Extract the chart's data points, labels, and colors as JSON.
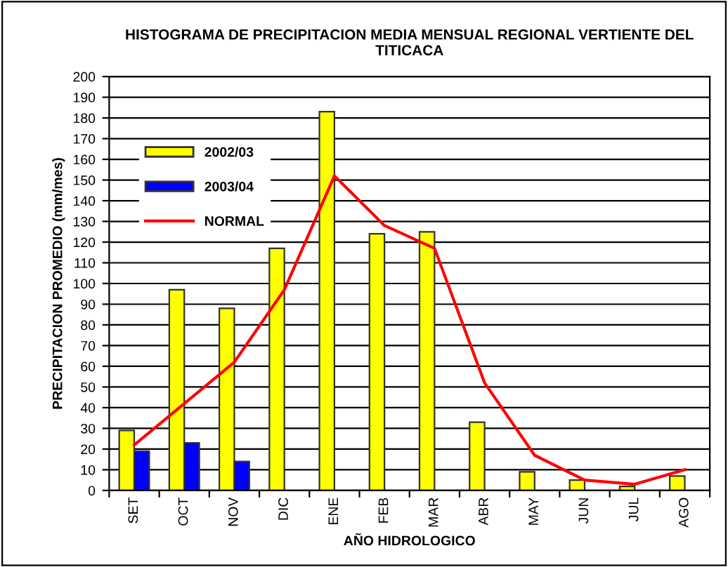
{
  "chart_data": {
    "type": "bar",
    "title": "HISTOGRAMA DE PRECIPITACION MEDIA MENSUAL REGIONAL VERTIENTE DEL TITICACA",
    "xlabel": "AÑO HIDROLOGICO",
    "ylabel": "PRECIPITACION PROMEDIO (mm/mes)",
    "categories": [
      "SET",
      "OCT",
      "NOV",
      "DIC",
      "ENE",
      "FEB",
      "MAR",
      "ABR",
      "MAY",
      "JUN",
      "JUL",
      "AGO"
    ],
    "series": [
      {
        "name": "2002/03",
        "color": "#ffff00",
        "values": [
          29,
          97,
          88,
          117,
          183,
          124,
          125,
          33,
          9,
          5,
          2,
          7
        ]
      },
      {
        "name": "2003/04",
        "color": "#0000ff",
        "values": [
          19,
          23,
          14,
          null,
          null,
          null,
          null,
          null,
          null,
          null,
          null,
          null
        ]
      },
      {
        "name": "NORMAL",
        "type": "line",
        "color": "#ff0000",
        "values": [
          22,
          42,
          62,
          97,
          152,
          128,
          117,
          52,
          17,
          5,
          3,
          10
        ]
      }
    ],
    "ylim": [
      0,
      200
    ],
    "yticks": [
      0,
      10,
      20,
      30,
      40,
      50,
      60,
      70,
      80,
      90,
      100,
      110,
      120,
      130,
      140,
      150,
      160,
      170,
      180,
      190,
      200
    ],
    "grid": "y",
    "legend": "top left",
    "marker": "none",
    "line_style": "solid"
  }
}
